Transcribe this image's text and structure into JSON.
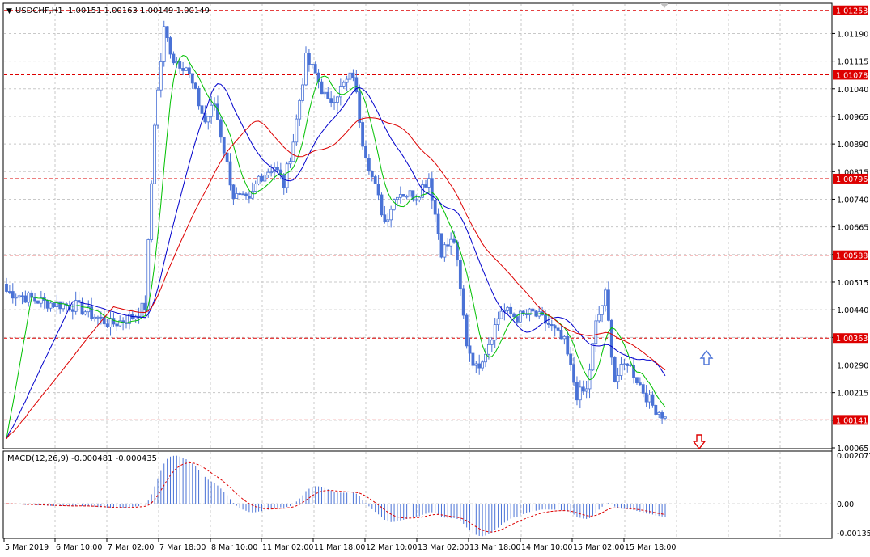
{
  "header": {
    "symbol_text": "USDCHF,H1",
    "ohlc_text": "1.00151 1.00163 1.00149 1.00149",
    "macd_label": "MACD(12,26,9) -0.000481 -0.000435"
  },
  "colors": {
    "bull_candle": "#4a72d6",
    "bear_candle": "#4a72d6",
    "ma_fast": "#00c000",
    "ma_mid": "#0000cc",
    "ma_slow": "#dd0000",
    "level_line": "#dd0000",
    "level_tag_bg": "#dd0000",
    "grid": "#c8c8c8",
    "macd_hist": "#4a72d6",
    "macd_signal": "#dd0000",
    "arrow_up": "#4a72d6",
    "arrow_down": "#dd0000"
  },
  "chart_data": [
    {
      "type": "candlestick",
      "title": "USDCHF,H1",
      "ylim": [
        1.00065,
        1.0127
      ],
      "y_ticks": [
        "1.01190",
        "1.01115",
        "1.01040",
        "1.00965",
        "1.00890",
        "1.00815",
        "1.00740",
        "1.00665",
        "1.00590",
        "1.00515",
        "1.00440",
        "1.00365",
        "1.00290",
        "1.00215",
        "1.00140",
        "1.00065"
      ],
      "level_tags": [
        "1.01253",
        "1.01078",
        "1.00796",
        "1.00588",
        "1.00363",
        "1.00141"
      ],
      "x_labels": [
        "5 Mar 2019",
        "6 Mar 10:00",
        "7 Mar 02:00",
        "7 Mar 18:00",
        "8 Mar 10:00",
        "11 Mar 02:00",
        "11 Mar 18:00",
        "12 Mar 10:00",
        "13 Mar 02:00",
        "13 Mar 18:00",
        "14 Mar 10:00",
        "15 Mar 02:00",
        "15 Mar 18:00"
      ],
      "bars_count": 210,
      "anchors": [
        [
          0,
          1.0049
        ],
        [
          12,
          1.0046
        ],
        [
          22,
          1.0045
        ],
        [
          33,
          1.004
        ],
        [
          40,
          1.0042
        ],
        [
          44,
          1.0045
        ],
        [
          47,
          1.0095
        ],
        [
          50,
          1.012
        ],
        [
          53,
          1.0112
        ],
        [
          57,
          1.011
        ],
        [
          63,
          1.0095
        ],
        [
          66,
          1.01
        ],
        [
          72,
          1.0075
        ],
        [
          77,
          1.0073
        ],
        [
          80,
          1.008
        ],
        [
          85,
          1.0083
        ],
        [
          88,
          1.0078
        ],
        [
          91,
          1.009
        ],
        [
          95,
          1.0112
        ],
        [
          98,
          1.0108
        ],
        [
          102,
          1.01
        ],
        [
          105,
          1.0103
        ],
        [
          110,
          1.0108
        ],
        [
          113,
          1.009
        ],
        [
          116,
          1.008
        ],
        [
          120,
          1.0068
        ],
        [
          124,
          1.0076
        ],
        [
          130,
          1.0075
        ],
        [
          134,
          1.008
        ],
        [
          138,
          1.006
        ],
        [
          142,
          1.0063
        ],
        [
          146,
          1.0035
        ],
        [
          149,
          1.0028
        ],
        [
          152,
          1.0033
        ],
        [
          157,
          1.0044
        ],
        [
          162,
          1.0042
        ],
        [
          167,
          1.0043
        ],
        [
          172,
          1.004
        ],
        [
          177,
          1.0035
        ],
        [
          181,
          1.0021
        ],
        [
          184,
          1.0022
        ],
        [
          187,
          1.004
        ],
        [
          190,
          1.0048
        ],
        [
          193,
          1.0025
        ],
        [
          197,
          1.003
        ],
        [
          202,
          1.0022
        ],
        [
          205,
          1.0018
        ],
        [
          209,
          1.00149
        ]
      ],
      "moving_averages": [
        {
          "color_key": "ma_fast",
          "period": 8
        },
        {
          "color_key": "ma_mid",
          "period": 21
        },
        {
          "color_key": "ma_slow",
          "period": 34
        }
      ]
    },
    {
      "type": "bar",
      "title": "MACD(12,26,9)",
      "ylim": [
        -0.001355,
        0.002077
      ],
      "y_ticks": [
        "0.002077",
        "0.00",
        "-0.001355"
      ],
      "values_last": {
        "macd": -0.000481,
        "signal": -0.000435
      }
    }
  ]
}
